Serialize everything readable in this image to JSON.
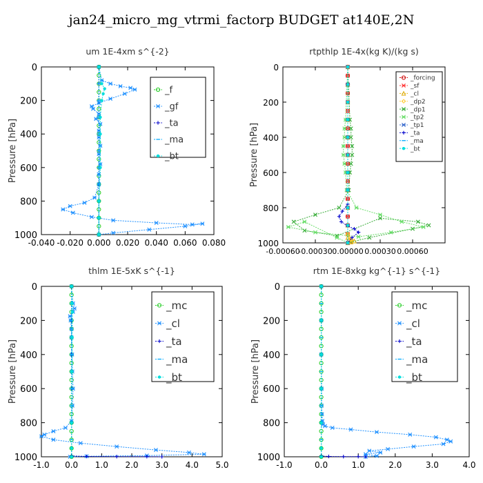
{
  "figure": {
    "title": "jan24_micro_mg_vtrmi_factorp  BUDGET at140E,2N"
  },
  "chart_data": [
    {
      "type": "line",
      "title": "um   1E-4xm s^{-2}",
      "ylabel": "Pressure [hPa]",
      "xlim": [
        -0.04,
        0.08
      ],
      "ylim": [
        1000,
        0
      ],
      "xticks": [
        "-0.040",
        "-0.020",
        "0.000",
        "0.020",
        "0.040",
        "0.060",
        "0.080"
      ],
      "yticks": [
        "0",
        "200",
        "400",
        "600",
        "800",
        "1000"
      ],
      "legend": "top-right",
      "series": [
        {
          "name": "_f",
          "color": "#22cc22",
          "marker": "circle",
          "x": [
            0,
            0,
            0,
            0,
            0,
            0,
            0,
            0,
            0,
            0,
            0,
            0,
            0,
            0,
            0,
            0,
            0,
            0,
            0,
            0,
            0
          ],
          "y": [
            0,
            50,
            100,
            150,
            200,
            250,
            300,
            350,
            400,
            450,
            500,
            550,
            600,
            650,
            700,
            750,
            800,
            850,
            900,
            950,
            1000
          ]
        },
        {
          "name": "_gf",
          "color": "#1e90ff",
          "marker": "star",
          "x": [
            0.0,
            0.002,
            0.008,
            0.015,
            0.022,
            0.025,
            0.018,
            0.008,
            0.0,
            -0.005,
            -0.004,
            0.0,
            -0.002,
            0.001,
            0.0,
            0.0,
            0.001,
            0.0,
            0.001,
            0.0,
            0.0,
            -0.003,
            -0.01,
            -0.02,
            -0.025,
            -0.018,
            -0.005,
            0.01,
            0.04,
            0.065,
            0.072,
            0.06,
            0.035,
            0.01,
            0.0
          ],
          "y": [
            0,
            80,
            100,
            115,
            125,
            135,
            160,
            190,
            215,
            235,
            250,
            280,
            310,
            340,
            380,
            420,
            470,
            520,
            580,
            640,
            700,
            780,
            810,
            830,
            850,
            870,
            895,
            915,
            930,
            940,
            935,
            950,
            970,
            990,
            1000
          ]
        },
        {
          "name": "_ta",
          "color": "#0000cc",
          "marker": "plus",
          "x": [
            0,
            0,
            0,
            0,
            0,
            0,
            0,
            0,
            0,
            0,
            0
          ],
          "y": [
            0,
            100,
            200,
            300,
            400,
            500,
            600,
            700,
            800,
            900,
            1000
          ]
        },
        {
          "name": "_ma",
          "color": "#00aaff",
          "marker": "dash",
          "x": [
            0,
            0,
            0,
            0,
            0,
            0,
            0,
            0,
            0,
            0,
            0
          ],
          "y": [
            0,
            100,
            200,
            300,
            400,
            500,
            600,
            700,
            800,
            900,
            1000
          ]
        },
        {
          "name": "_bt",
          "color": "#00dddd",
          "marker": "dot",
          "x": [
            0.0,
            0.002,
            0.004,
            0.003,
            0.002,
            0.001,
            0.001,
            0.001,
            0.0,
            0.0,
            0.0
          ],
          "y": [
            0,
            100,
            130,
            160,
            200,
            300,
            400,
            600,
            800,
            900,
            1000
          ]
        }
      ]
    },
    {
      "type": "line",
      "title": "rtpthlp   1E-4x(kg K)/(kg s)",
      "ylabel": "Pressure [hPa]",
      "xlim": [
        -0.0006,
        0.0009
      ],
      "ylim": [
        1000,
        0
      ],
      "xticks": [
        "-0.00060",
        "-0.00030",
        "0.00000",
        "0.00030",
        "0.00060"
      ],
      "yticks": [
        "0",
        "200",
        "400",
        "600",
        "800",
        "1000"
      ],
      "legend": "top-right",
      "series": [
        {
          "name": "_forcing",
          "color": "#cc0000",
          "marker": "circle",
          "x": [
            0,
            0,
            0,
            0,
            0,
            0,
            0,
            0,
            0,
            0,
            0,
            0,
            0,
            0,
            0,
            0,
            0,
            0,
            0,
            0,
            0
          ],
          "y": [
            0,
            50,
            100,
            150,
            200,
            250,
            300,
            350,
            400,
            450,
            500,
            550,
            600,
            650,
            700,
            750,
            800,
            850,
            900,
            950,
            1000
          ]
        },
        {
          "name": "_sf",
          "color": "#ff3333",
          "marker": "star",
          "x": [
            0,
            0,
            0,
            0,
            0,
            0,
            0,
            0,
            0,
            0,
            0,
            0,
            0,
            0,
            0,
            0,
            0,
            0,
            0,
            0,
            0
          ],
          "y": [
            0,
            50,
            100,
            150,
            200,
            250,
            300,
            350,
            400,
            450,
            500,
            550,
            600,
            650,
            700,
            750,
            800,
            850,
            900,
            950,
            1000
          ]
        },
        {
          "name": "_cl",
          "color": "#ddaa00",
          "marker": "triangle",
          "x": [
            0,
            0,
            0,
            0,
            0,
            0,
            0,
            0,
            0,
            0,
            0,
            0,
            3e-05,
            6e-05,
            3e-05,
            0
          ],
          "y": [
            0,
            100,
            200,
            300,
            400,
            500,
            600,
            700,
            800,
            900,
            950,
            970,
            980,
            990,
            995,
            1000
          ]
        },
        {
          "name": "_dp2",
          "color": "#ffcc33",
          "marker": "diamond",
          "x": [
            0,
            0,
            0,
            0,
            0,
            0,
            2e-05,
            4e-05,
            2e-05,
            0
          ],
          "y": [
            0,
            200,
            400,
            600,
            800,
            950,
            975,
            985,
            995,
            1000
          ]
        },
        {
          "name": "_dp1",
          "color": "#33aa33",
          "marker": "cross",
          "x": [
            0.0,
            2e-05,
            3e-05,
            3e-05,
            4e-05,
            4e-05,
            3e-05,
            2e-05,
            1e-05,
            -8e-05,
            -0.0003,
            -0.0005,
            -0.0004,
            -0.0001,
            0.0003,
            0.00065,
            0.00075,
            0.0006,
            0.0002,
            0.0
          ],
          "y": [
            0,
            300,
            350,
            400,
            450,
            500,
            550,
            600,
            700,
            800,
            840,
            880,
            930,
            960,
            860,
            880,
            900,
            920,
            970,
            1000
          ]
        },
        {
          "name": "_tp2",
          "color": "#66dd66",
          "marker": "star",
          "x": [
            0.0,
            -2e-05,
            -3e-05,
            -3e-05,
            -4e-05,
            -4e-05,
            -3e-05,
            -2e-05,
            -1e-05,
            8e-05,
            0.0003,
            0.0005,
            0.0007,
            0.0004,
            0.0001,
            -0.0003,
            -0.00055,
            -0.0004,
            -0.0001,
            0.0
          ],
          "y": [
            0,
            300,
            350,
            400,
            450,
            500,
            550,
            600,
            700,
            800,
            840,
            880,
            910,
            940,
            965,
            940,
            910,
            880,
            970,
            1000
          ]
        },
        {
          "name": "_tp1",
          "color": "#3366cc",
          "marker": "star",
          "x": [
            0,
            0,
            0,
            0,
            0,
            0,
            0,
            0,
            0,
            0,
            0
          ],
          "y": [
            0,
            100,
            200,
            300,
            400,
            500,
            600,
            700,
            800,
            900,
            1000
          ]
        },
        {
          "name": "_ta",
          "color": "#0000cc",
          "marker": "plus",
          "x": [
            0.0,
            0.0,
            0.0,
            -5e-05,
            -8e-05,
            -6e-05,
            0.0,
            6e-05,
            0.0001,
            4e-05,
            0.0
          ],
          "y": [
            0,
            400,
            780,
            820,
            850,
            880,
            905,
            920,
            940,
            970,
            1000
          ]
        },
        {
          "name": "_ma",
          "color": "#00aaff",
          "marker": "dash",
          "x": [
            0,
            0,
            0,
            0,
            0,
            0,
            0,
            0,
            0,
            0,
            0
          ],
          "y": [
            0,
            100,
            200,
            300,
            400,
            500,
            600,
            700,
            800,
            900,
            1000
          ]
        },
        {
          "name": "_bt",
          "color": "#00dddd",
          "marker": "dot",
          "x": [
            0,
            0,
            0,
            0,
            0,
            0,
            0,
            0,
            0,
            0,
            0
          ],
          "y": [
            0,
            100,
            200,
            300,
            400,
            500,
            600,
            700,
            800,
            900,
            1000
          ]
        }
      ]
    },
    {
      "type": "line",
      "title": "thlm   1E-5xK s^{-1}",
      "ylabel": "Pressure [hPa]",
      "xlim": [
        -1.0,
        5.0
      ],
      "ylim": [
        1000,
        0
      ],
      "xticks": [
        "-1.0",
        "0.0",
        "1.0",
        "2.0",
        "3.0",
        "4.0",
        "5.0"
      ],
      "yticks": [
        "0",
        "200",
        "400",
        "600",
        "800",
        "1000"
      ],
      "legend": "top-right",
      "series": [
        {
          "name": "_mc",
          "color": "#22cc22",
          "marker": "circle",
          "x": [
            0,
            0,
            0,
            0,
            0,
            0,
            0,
            0,
            0,
            0,
            0,
            0,
            0,
            0,
            0,
            0,
            0,
            0,
            0,
            0,
            0
          ],
          "y": [
            0,
            50,
            100,
            150,
            200,
            250,
            300,
            350,
            400,
            450,
            500,
            550,
            600,
            650,
            700,
            750,
            800,
            850,
            900,
            950,
            1000
          ]
        },
        {
          "name": "_cl",
          "color": "#1e90ff",
          "marker": "star",
          "x": [
            0.0,
            0.05,
            0.1,
            0.05,
            -0.05,
            -0.03,
            0.0,
            0.0,
            0.02,
            0.03,
            0.05,
            0.03,
            0.0,
            -0.2,
            -0.6,
            -0.9,
            -1.0,
            -0.6,
            0.3,
            1.5,
            2.8,
            3.9,
            4.4,
            2.5,
            0.5,
            -0.05
          ],
          "y": [
            0,
            100,
            130,
            150,
            175,
            200,
            250,
            300,
            400,
            500,
            600,
            700,
            790,
            830,
            850,
            870,
            880,
            900,
            920,
            940,
            960,
            975,
            985,
            993,
            997,
            1000
          ]
        },
        {
          "name": "_ta",
          "color": "#0000cc",
          "marker": "plus",
          "x": [
            0.0,
            0.0,
            0.0,
            0.0,
            0.0,
            0.0,
            0.5,
            1.5,
            2.5,
            3.0
          ],
          "y": [
            0,
            200,
            400,
            600,
            800,
            995,
            998,
            999,
            999,
            1000
          ]
        },
        {
          "name": "_ma",
          "color": "#00aaff",
          "marker": "dash",
          "x": [
            0,
            0,
            0,
            0,
            0,
            0,
            0,
            0,
            0,
            0,
            0
          ],
          "y": [
            0,
            100,
            200,
            300,
            400,
            500,
            600,
            700,
            800,
            900,
            1000
          ]
        },
        {
          "name": "_bt",
          "color": "#00dddd",
          "marker": "dot",
          "x": [
            0.0,
            0.02,
            0.03,
            0.02,
            0.01,
            0.0,
            0.0,
            0.0
          ],
          "y": [
            0,
            100,
            150,
            300,
            500,
            800,
            950,
            1000
          ]
        }
      ]
    },
    {
      "type": "line",
      "title": "rtm   1E-8xkg kg^{-1} s^{-1}",
      "ylabel": "Pressure [hPa]",
      "xlim": [
        -1.0,
        4.0
      ],
      "ylim": [
        1000,
        0
      ],
      "xticks": [
        "-1.0",
        "0.0",
        "1.0",
        "2.0",
        "3.0",
        "4.0"
      ],
      "yticks": [
        "0",
        "200",
        "400",
        "600",
        "800",
        "1000"
      ],
      "legend": "top-right",
      "series": [
        {
          "name": "_mc",
          "color": "#22cc22",
          "marker": "circle",
          "x": [
            0,
            0,
            0,
            0,
            0,
            0,
            0,
            0,
            0,
            0,
            0,
            0,
            0,
            0,
            0,
            0,
            0,
            0,
            0,
            0,
            0
          ],
          "y": [
            0,
            50,
            100,
            150,
            200,
            250,
            300,
            350,
            400,
            450,
            500,
            550,
            600,
            650,
            700,
            750,
            800,
            850,
            900,
            950,
            1000
          ]
        },
        {
          "name": "_cl",
          "color": "#1e90ff",
          "marker": "star",
          "x": [
            0.0,
            0.0,
            0.0,
            0.01,
            0.01,
            0.02,
            0.03,
            0.05,
            0.1,
            0.3,
            0.8,
            1.5,
            2.4,
            3.1,
            3.4,
            3.5,
            3.3,
            2.5,
            1.8,
            1.3,
            1.6,
            1.2,
            1.5,
            1.2
          ],
          "y": [
            0,
            200,
            400,
            600,
            700,
            750,
            790,
            810,
            820,
            830,
            840,
            855,
            870,
            885,
            900,
            910,
            925,
            940,
            955,
            965,
            975,
            985,
            995,
            1000
          ]
        },
        {
          "name": "_ta",
          "color": "#0000cc",
          "marker": "plus",
          "x": [
            0.0,
            0.0,
            0.0,
            0.0,
            0.0,
            0.0,
            0.2,
            0.6,
            1.0,
            1.2
          ],
          "y": [
            0,
            200,
            400,
            600,
            800,
            995,
            998,
            999,
            999,
            1000
          ]
        },
        {
          "name": "_ma",
          "color": "#00aaff",
          "marker": "dash",
          "x": [
            0,
            0,
            0,
            0,
            0,
            0,
            0,
            0,
            0,
            0,
            0
          ],
          "y": [
            0,
            100,
            200,
            300,
            400,
            500,
            600,
            700,
            800,
            900,
            1000
          ]
        },
        {
          "name": "_bt",
          "color": "#00dddd",
          "marker": "dot",
          "x": [
            0.0,
            0.0,
            0.0,
            0.0,
            0.0,
            0.0,
            0.0
          ],
          "y": [
            0,
            200,
            400,
            600,
            800,
            950,
            1000
          ]
        }
      ]
    }
  ]
}
